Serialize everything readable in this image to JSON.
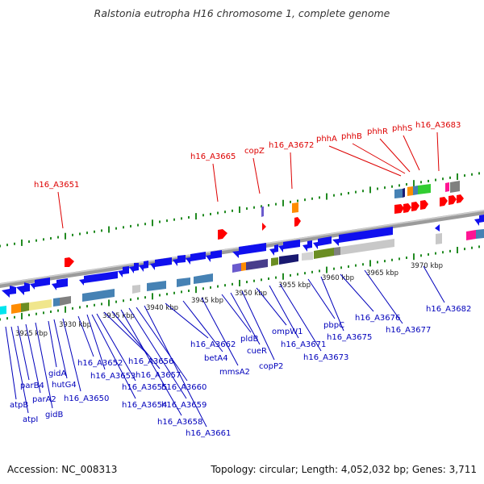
{
  "title": "Ralstonia eutropha H16 chromosome 1, complete genome",
  "footer": {
    "accession": "Accession: NC_008313",
    "summary": "Topology: circular; Length: 4,052,032 bp; Genes: 3,711"
  },
  "colors": {
    "upper_label": "#dd0000",
    "lower_label": "#0000bb",
    "backbone": "#999999",
    "tick": "#228b22",
    "forward_gene": "#ff0000",
    "reverse_gene": "#0000ff"
  },
  "scale_ticks": [
    "3925 kbp",
    "3930 kbp",
    "3935 kbp",
    "3940 kbp",
    "3945 kbp",
    "3950 kbp",
    "3955 kbp",
    "3960 kbp",
    "3965 kbp",
    "3970 kbp"
  ],
  "upper_labels": [
    "h16_A3651",
    "h16_A3665",
    "copZ",
    "h16_A3672",
    "phhA",
    "phhB",
    "phhR",
    "phhS",
    "h16_A3683"
  ],
  "lower_labels": [
    "atpB",
    "atpI",
    "parB4",
    "parA2",
    "gidB",
    "gidA",
    "hutG4",
    "h16_A3650",
    "h16_A3652",
    "h16_A3653",
    "h16_A3654",
    "h16_A3655",
    "h16_A3656",
    "h16_A3657",
    "h16_A3658",
    "h16_A3659",
    "h16_A3660",
    "h16_A3661",
    "h16_A3662",
    "betA4",
    "mmsA2",
    "pldB",
    "cueR",
    "copP2",
    "ompW1",
    "h16_A3671",
    "h16_A3673",
    "pbpC",
    "h16_A3675",
    "h16_A3676",
    "h16_A3677",
    "h16_A3682"
  ]
}
